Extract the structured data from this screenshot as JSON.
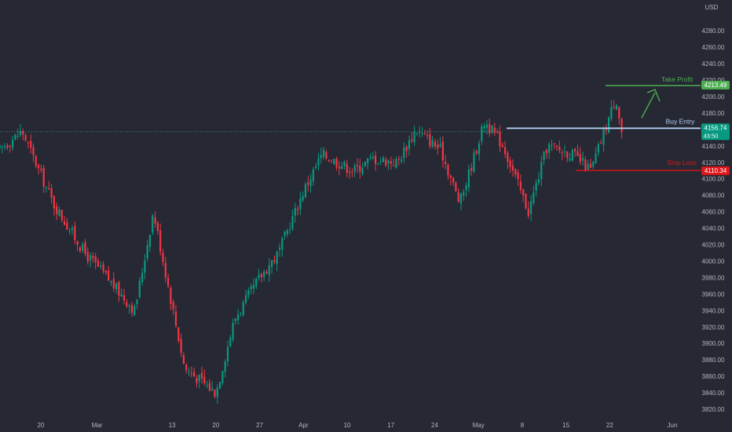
{
  "chart_data": {
    "type": "candlestick",
    "currency": "USD",
    "ylim": [
      3810,
      4310
    ],
    "y_ticks": [
      "4280.00",
      "4260.00",
      "4240.00",
      "4220.00",
      "4200.00",
      "4180.00",
      "4160.00",
      "4140.00",
      "4120.00",
      "4100.00",
      "4080.00",
      "4060.00",
      "4040.00",
      "4020.00",
      "4000.00",
      "3980.00",
      "3960.00",
      "3940.00",
      "3920.00",
      "3900.00",
      "3880.00",
      "3860.00",
      "3840.00",
      "3820.00"
    ],
    "x_ticks": [
      {
        "label": "20",
        "date": "2023-02-20"
      },
      {
        "label": "Mar",
        "date": "2023-03-01"
      },
      {
        "label": "13",
        "date": "2023-03-13"
      },
      {
        "label": "20",
        "date": "2023-03-20"
      },
      {
        "label": "27",
        "date": "2023-03-27"
      },
      {
        "label": "Apr",
        "date": "2023-04-03"
      },
      {
        "label": "10",
        "date": "2023-04-10"
      },
      {
        "label": "17",
        "date": "2023-04-17"
      },
      {
        "label": "24",
        "date": "2023-04-24"
      },
      {
        "label": "May",
        "date": "2023-05-01"
      },
      {
        "label": "8",
        "date": "2023-05-08"
      },
      {
        "label": "15",
        "date": "2023-05-15"
      },
      {
        "label": "22",
        "date": "2023-05-22"
      },
      {
        "label": "Jun",
        "date": "2023-06-01"
      }
    ],
    "series": [
      {
        "x": [
          "2023-02-13",
          "2023-02-17",
          "2023-02-22",
          "2023-02-27",
          "2023-03-02",
          "2023-03-07",
          "2023-03-10",
          "2023-03-15",
          "2023-03-20",
          "2023-03-23",
          "2023-03-27",
          "2023-03-30",
          "2023-04-03",
          "2023-04-06",
          "2023-04-11",
          "2023-04-14",
          "2023-04-18",
          "2023-04-21",
          "2023-04-25",
          "2023-04-28",
          "2023-05-02",
          "2023-05-05",
          "2023-05-09",
          "2023-05-12",
          "2023-05-16",
          "2023-05-19",
          "2023-05-23",
          "2023-05-24"
        ],
        "close": [
          4133,
          4158,
          4070,
          4010,
          3985,
          3940,
          4060,
          3870,
          3840,
          3930,
          3980,
          4010,
          4085,
          4130,
          4110,
          4125,
          4120,
          4160,
          4135,
          4070,
          4170,
          4140,
          4060,
          4140,
          4130,
          4110,
          4200,
          4153
        ]
      }
    ],
    "levels": [
      {
        "label": "Take Profit",
        "value": 4213.49,
        "color": "#4caf50",
        "badge": "4213.49"
      },
      {
        "label": "Buy Entry",
        "value": 4156.74,
        "color": "#b3cdf0",
        "badge": "4156.74",
        "sub": "43:50",
        "badge_color": "#089981"
      },
      {
        "label": "Stop Loss",
        "value": 4110.34,
        "color": "#e0161b",
        "badge": "4110.34"
      }
    ],
    "colors": {
      "up": "#089981",
      "down": "#f23645",
      "background": "#262833",
      "axis_text": "#b2b5be",
      "dotted": "#3f8f84"
    }
  }
}
